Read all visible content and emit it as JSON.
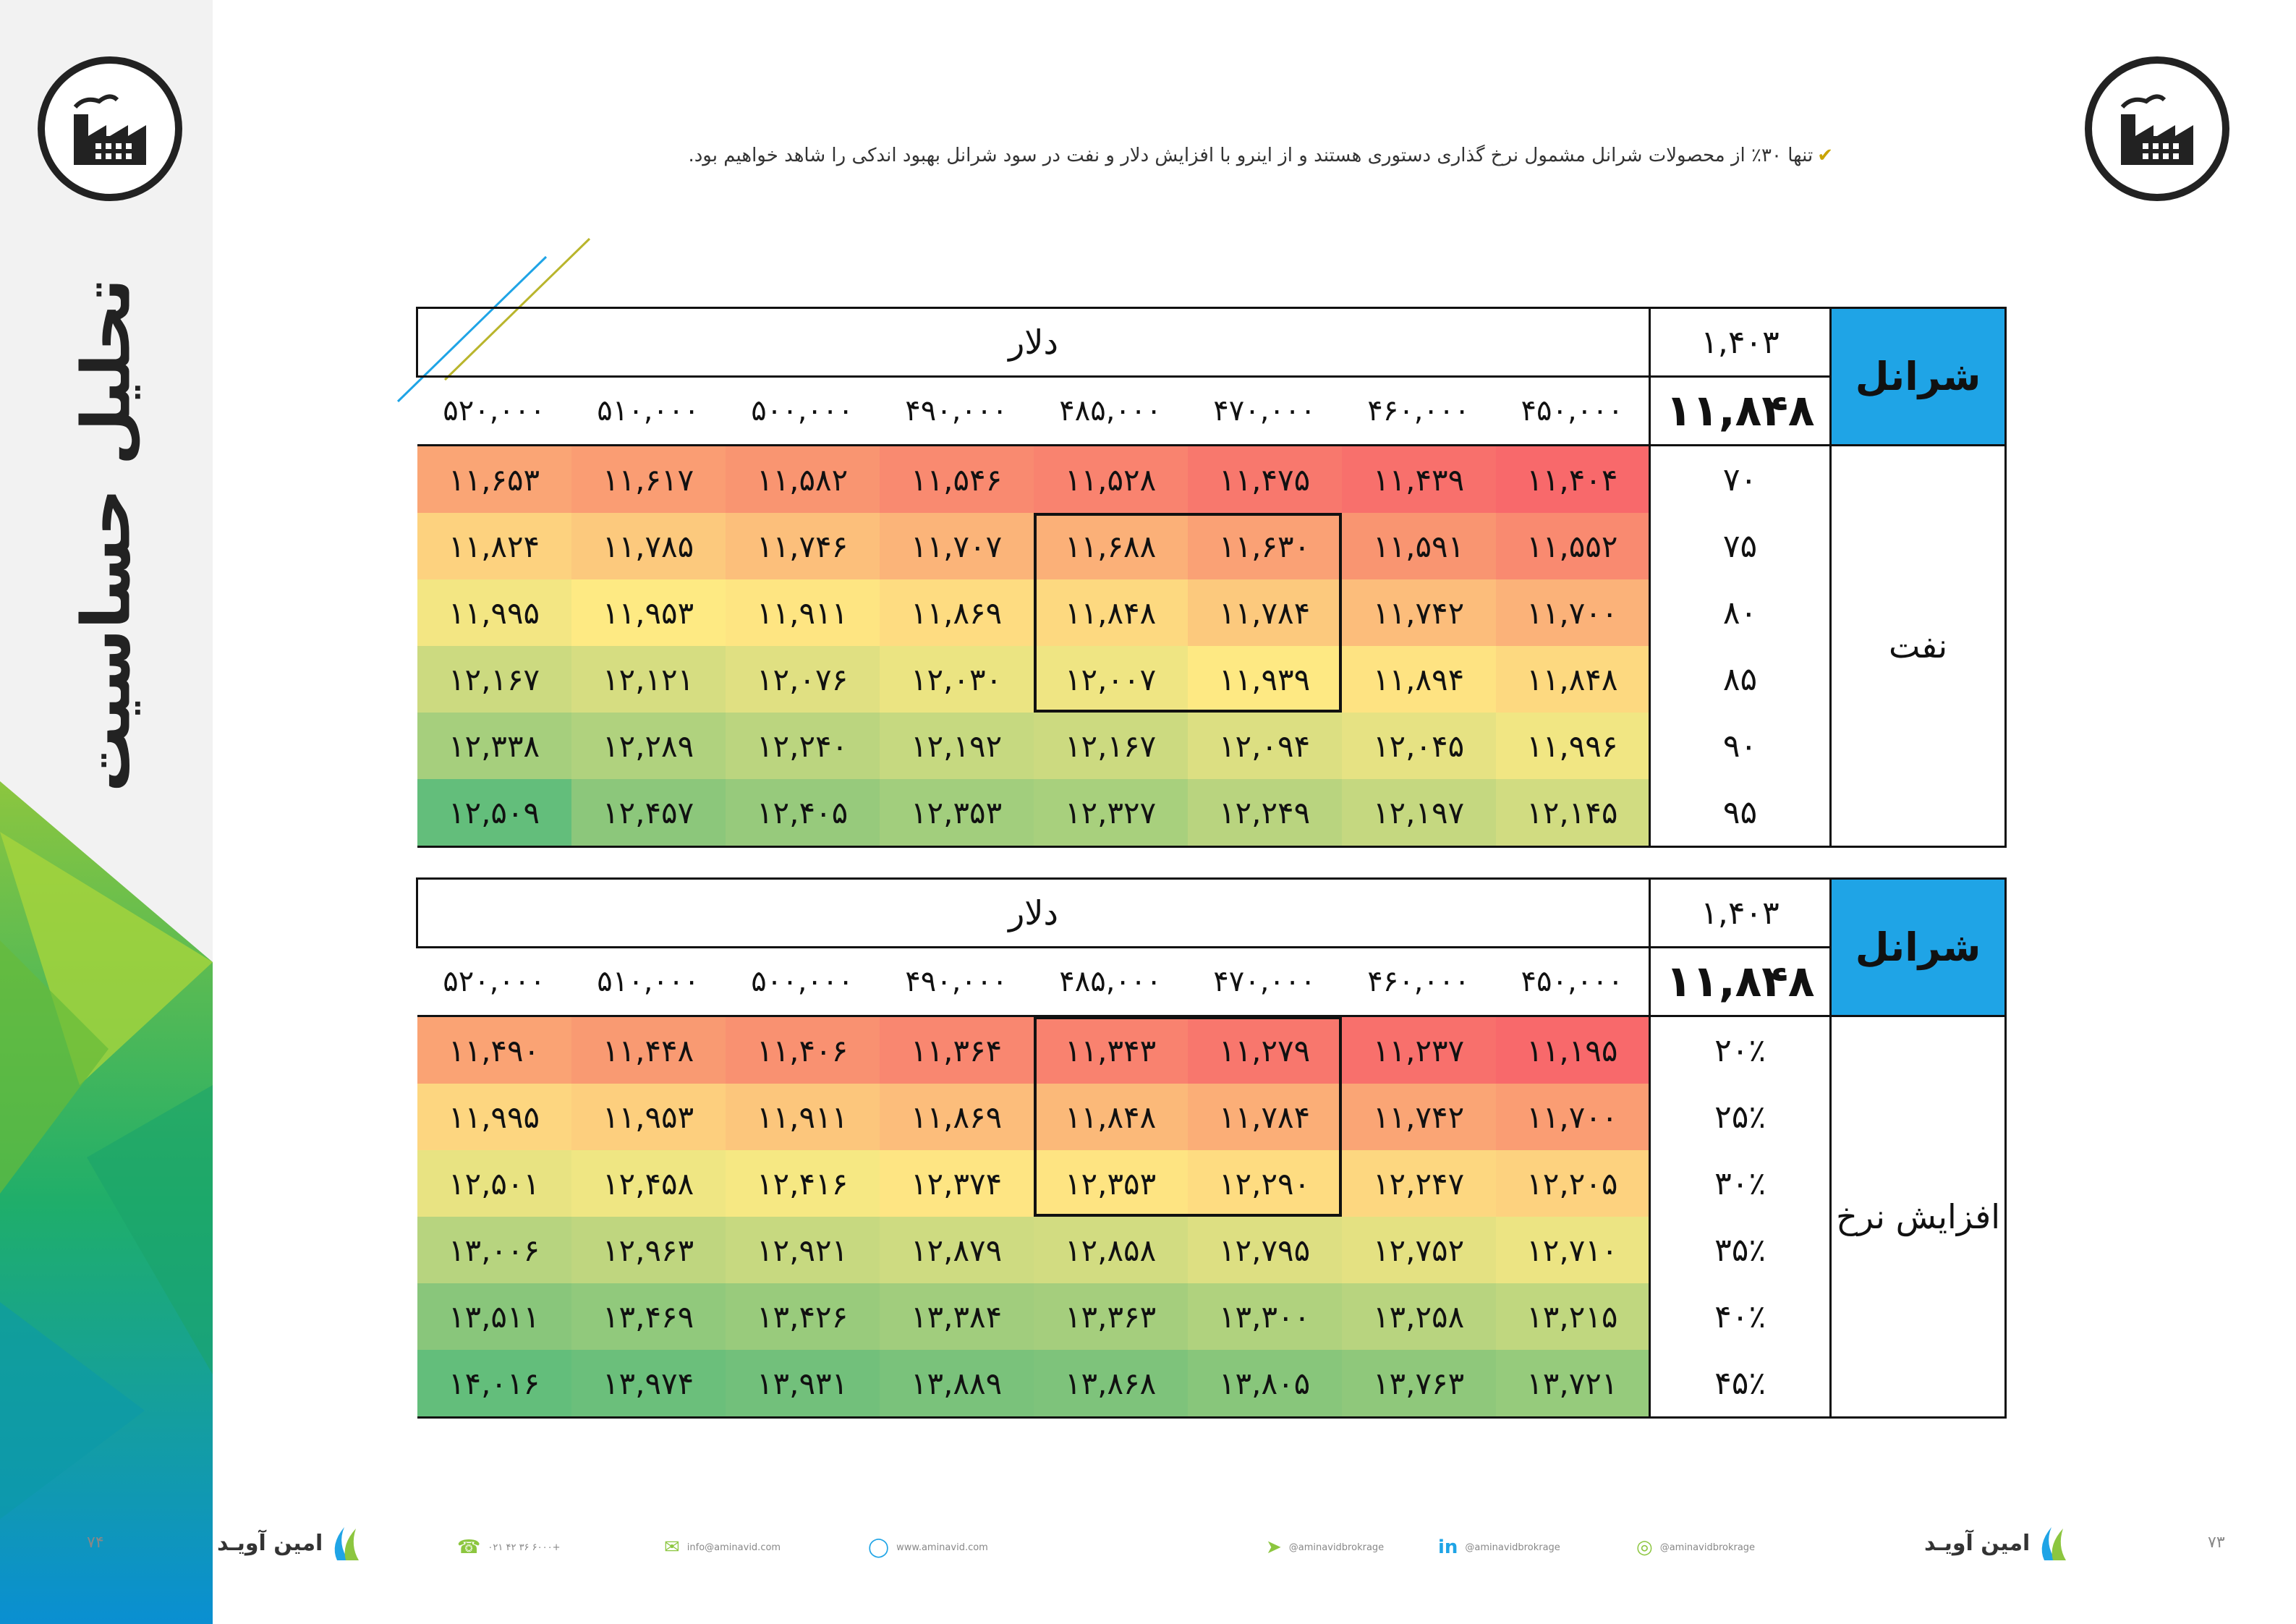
{
  "page": {
    "side_title": "تحلیل حساسیت",
    "note": "تنها ۳۰٪ از محصولات شرانل مشمول نرخ گذاری دستوری هستند و از اینرو با افزایش دلار و نفت در سود شرانل بهبود اندکی را شاهد خواهیم بود.",
    "note_tick": "✔"
  },
  "tables": [
    {
      "brand": "شرانل",
      "year": "۱,۴۰۳",
      "base": "۱۱,۸۴۸",
      "group_label": "دلار",
      "row_group": "نفت",
      "prices": [
        "۴۵۰,۰۰۰",
        "۴۶۰,۰۰۰",
        "۴۷۰,۰۰۰",
        "۴۸۵,۰۰۰",
        "۴۹۰,۰۰۰",
        "۵۰۰,۰۰۰",
        "۵۱۰,۰۰۰",
        "۵۲۰,۰۰۰"
      ],
      "rows": [
        {
          "label": "۷۰",
          "values": [
            "۱۱,۴۰۴",
            "۱۱,۴۳۹",
            "۱۱,۴۷۵",
            "۱۱,۵۲۸",
            "۱۱,۵۴۶",
            "۱۱,۵۸۲",
            "۱۱,۶۱۷",
            "۱۱,۶۵۳"
          ],
          "colors": [
            "#f8696b",
            "#f8706c",
            "#f8786d",
            "#f9836f",
            "#f98a70",
            "#f99571",
            "#fa9d73",
            "#faa575"
          ]
        },
        {
          "label": "۷۵",
          "values": [
            "۱۱,۵۵۲",
            "۱۱,۵۹۱",
            "۱۱,۶۳۰",
            "۱۱,۶۸۸",
            "۱۱,۷۰۷",
            "۱۱,۷۴۶",
            "۱۱,۷۸۵",
            "۱۱,۸۲۴"
          ],
          "colors": [
            "#f98a70",
            "#f99571",
            "#faa175",
            "#fbb078",
            "#fbb479",
            "#fcbf7b",
            "#fcc97d",
            "#fdd27f"
          ]
        },
        {
          "label": "۸۰",
          "values": [
            "۱۱,۷۰۰",
            "۱۱,۷۴۲",
            "۱۱,۷۸۴",
            "۱۱,۸۴۸",
            "۱۱,۸۶۹",
            "۱۱,۹۱۱",
            "۱۱,۹۵۳",
            "۱۱,۹۹۵"
          ],
          "colors": [
            "#fbb279",
            "#fcbd7b",
            "#fcc97d",
            "#fdd980",
            "#fedc81",
            "#fee582",
            "#feea83",
            "#f3e683"
          ]
        },
        {
          "label": "۸۵",
          "values": [
            "۱۱,۸۴۸",
            "۱۱,۸۹۴",
            "۱۱,۹۳۹",
            "۱۲,۰۰۷",
            "۱۲,۰۳۰",
            "۱۲,۰۷۶",
            "۱۲,۱۲۱",
            "۱۲,۱۶۷"
          ],
          "colors": [
            "#fdd980",
            "#fee382",
            "#fee983",
            "#efe583",
            "#ebe482",
            "#e0e082",
            "#d6dd81",
            "#ccda80"
          ]
        },
        {
          "label": "۹۰",
          "values": [
            "۱۱,۹۹۶",
            "۱۲,۰۴۵",
            "۱۲,۰۹۴",
            "۱۲,۱۶۷",
            "۱۲,۱۹۲",
            "۱۲,۲۴۰",
            "۱۲,۲۸۹",
            "۱۲,۳۳۸"
          ],
          "colors": [
            "#f1e683",
            "#e6e283",
            "#dcdf82",
            "#ccda80",
            "#c6d980",
            "#bbd57f",
            "#b0d27e",
            "#a6cf7d"
          ]
        },
        {
          "label": "۹۵",
          "values": [
            "۱۲,۱۴۵",
            "۱۲,۱۹۷",
            "۱۲,۲۴۹",
            "۱۲,۳۲۷",
            "۱۲,۳۵۳",
            "۱۲,۴۰۵",
            "۱۲,۴۵۷",
            "۱۲,۵۰۹"
          ],
          "colors": [
            "#d1dc81",
            "#c5d880",
            "#b9d47f",
            "#a8d07d",
            "#a2ce7d",
            "#97ca7c",
            "#8cc77b",
            "#63be7b"
          ]
        }
      ]
    },
    {
      "brand": "شرانل",
      "year": "۱,۴۰۳",
      "base": "۱۱,۸۴۸",
      "group_label": "دلار",
      "row_group": "افزایش نرخ",
      "prices": [
        "۴۵۰,۰۰۰",
        "۴۶۰,۰۰۰",
        "۴۷۰,۰۰۰",
        "۴۸۵,۰۰۰",
        "۴۹۰,۰۰۰",
        "۵۰۰,۰۰۰",
        "۵۱۰,۰۰۰",
        "۵۲۰,۰۰۰"
      ],
      "rows": [
        {
          "label": "۲۰٪",
          "values": [
            "۱۱,۱۹۵",
            "۱۱,۲۳۷",
            "۱۱,۲۷۹",
            "۱۱,۳۴۳",
            "۱۱,۳۶۴",
            "۱۱,۴۰۶",
            "۱۱,۴۴۸",
            "۱۱,۴۹۰"
          ],
          "colors": [
            "#f8696b",
            "#f8706c",
            "#f8776d",
            "#f9826f",
            "#f98770",
            "#f99171",
            "#f99a72",
            "#faa374"
          ]
        },
        {
          "label": "۲۵٪",
          "values": [
            "۱۱,۷۰۰",
            "۱۱,۷۴۲",
            "۱۱,۷۸۴",
            "۱۱,۸۴۸",
            "۱۱,۸۶۹",
            "۱۱,۹۱۱",
            "۱۱,۹۵۳",
            "۱۱,۹۹۵"
          ],
          "colors": [
            "#fa9d73",
            "#faa575",
            "#fbae77",
            "#fbb979",
            "#fcbd7b",
            "#fcc67c",
            "#fdcf7e",
            "#fdd680"
          ]
        },
        {
          "label": "۳۰٪",
          "values": [
            "۱۲,۲۰۵",
            "۱۲,۲۴۷",
            "۱۲,۲۹۰",
            "۱۲,۳۵۳",
            "۱۲,۳۷۴",
            "۱۲,۴۱۶",
            "۱۲,۴۵۸",
            "۱۲,۵۰۱"
          ],
          "colors": [
            "#fdd27f",
            "#fdd780",
            "#fedc81",
            "#fee482",
            "#fee583",
            "#f6e883",
            "#efe683",
            "#e8e382"
          ]
        },
        {
          "label": "۳۵٪",
          "values": [
            "۱۲,۷۱۰",
            "۱۲,۷۵۲",
            "۱۲,۷۹۵",
            "۱۲,۸۵۸",
            "۱۲,۸۷۹",
            "۱۲,۹۲۱",
            "۱۲,۹۶۳",
            "۱۳,۰۰۶"
          ],
          "colors": [
            "#ece483",
            "#e4e182",
            "#dddf82",
            "#d2dc81",
            "#cedb81",
            "#c7d980",
            "#bfd67f",
            "#b7d47f"
          ]
        },
        {
          "label": "۴۰٪",
          "values": [
            "۱۳,۲۱۵",
            "۱۳,۲۵۸",
            "۱۳,۳۰۰",
            "۱۳,۳۶۳",
            "۱۳,۳۸۴",
            "۱۳,۴۲۶",
            "۱۳,۴۶۹",
            "۱۳,۵۱۱"
          ],
          "colors": [
            "#c0d77f",
            "#b8d47f",
            "#b0d27e",
            "#a5ce7d",
            "#a1cd7d",
            "#99cb7c",
            "#91c97c",
            "#89c67b"
          ]
        },
        {
          "label": "۴۵٪",
          "values": [
            "۱۳,۷۲۱",
            "۱۳,۷۶۳",
            "۱۳,۸۰۵",
            "۱۳,۸۶۸",
            "۱۳,۸۸۹",
            "۱۳,۹۳۱",
            "۱۳,۹۷۴",
            "۱۴,۰۱۶"
          ],
          "colors": [
            "#96cb7c",
            "#8fc87b",
            "#88c67b",
            "#7ec37b",
            "#7ac27b",
            "#72c07b",
            "#6bbf7b",
            "#63be7b"
          ]
        }
      ]
    }
  ],
  "footer": {
    "phone": "۰۲۱ ۴۲ ۳۶ ۶۰۰۰+",
    "email": "info@aminavid.com",
    "web": "www.aminavid.com",
    "instagram": "@aminavidbrokrage",
    "linkedin": "@aminavidbrokrage",
    "telegram": "@aminavidbrokrage",
    "brand_name": "امین آویـد",
    "page_left": "۷۴",
    "page_right": "۷۳"
  },
  "colors": {
    "brand_blue": "#1fa4e6",
    "accent_green": "#8cc63f"
  }
}
